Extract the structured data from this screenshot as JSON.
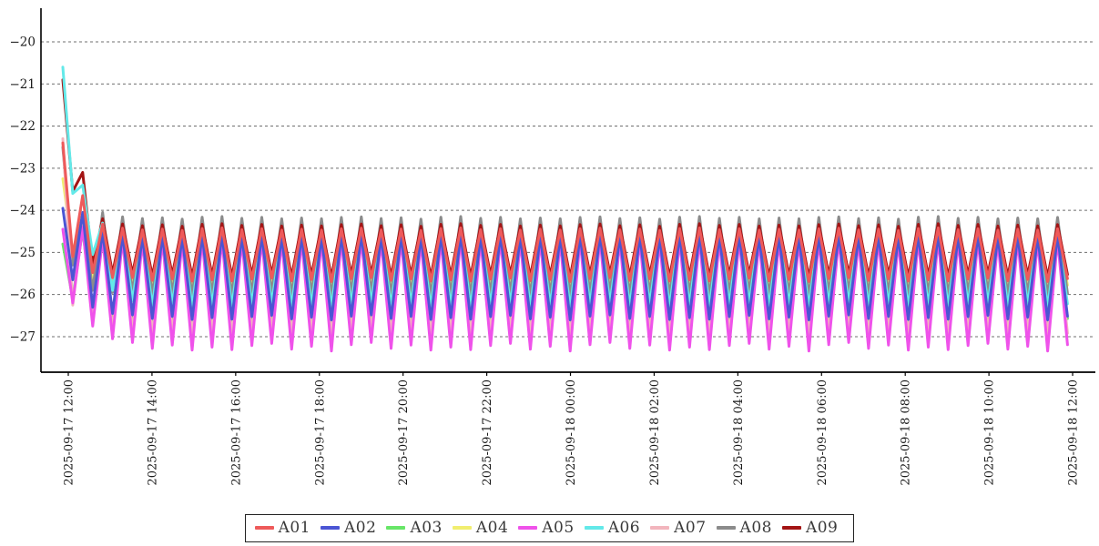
{
  "chart_data": {
    "type": "line",
    "title": "",
    "xlabel": "",
    "ylabel": "",
    "grid": "horizontal-dashed",
    "legend_position": "bottom-center",
    "x_axis": {
      "tick_labels": [
        "2025-09-17 12:00",
        "2025-09-17 14:00",
        "2025-09-17 16:00",
        "2025-09-17 18:00",
        "2025-09-17 20:00",
        "2025-09-17 22:00",
        "2025-09-18 00:00",
        "2025-09-18 02:00",
        "2025-09-18 04:00",
        "2025-09-18 06:00",
        "2025-09-18 08:00",
        "2025-09-18 10:00",
        "2025-09-18 12:00"
      ],
      "tick_interval_hours": 2
    },
    "y_axis": {
      "tick_values": [
        -20,
        -21,
        -22,
        -23,
        -24,
        -25,
        -26,
        -27
      ],
      "tick_labels": [
        "−20",
        "−21",
        "−22",
        "−23",
        "−24",
        "−25",
        "−26",
        "−27"
      ],
      "ylim": [
        -27.85,
        -19.2
      ]
    },
    "waveform": {
      "shape": "triangle",
      "period_minutes": 30,
      "cycles_shown": 50.5,
      "peak_jitter_scale": 0.3,
      "jitter_pattern": [
        0,
        -0.06,
        0.04,
        0.09,
        -0.05,
        0.02,
        -0.09,
        0.06,
        0.11,
        -0.03,
        0.05,
        -0.07
      ]
    },
    "series": [
      {
        "name": "A01",
        "color": "#ee5a5a",
        "draw_order": 8,
        "peaks_transient": [
          -22.4,
          -23.65,
          -24.33
        ],
        "troughs_transient": [
          -25.1,
          -25.48,
          -25.6
        ],
        "steady_peak": -24.45,
        "steady_trough": -25.65,
        "trough_jitter_scale": 0.45
      },
      {
        "name": "A02",
        "color": "#4b55d4",
        "draw_order": 7,
        "peaks_transient": [
          -23.95,
          -24.05,
          -24.5
        ],
        "troughs_transient": [
          -25.65,
          -26.3,
          -26.45
        ],
        "steady_peak": -24.6,
        "steady_trough": -26.55,
        "trough_jitter_scale": 0.6
      },
      {
        "name": "A03",
        "color": "#68e668",
        "draw_order": 4,
        "peaks_transient": [
          -24.8,
          -24.45,
          -24.5
        ],
        "troughs_transient": [
          -26.1,
          -26.5,
          -26.55
        ],
        "steady_peak": -24.5,
        "steady_trough": -26.6,
        "trough_jitter_scale": 0.5
      },
      {
        "name": "A04",
        "color": "#f1ee6f",
        "draw_order": 0,
        "peaks_transient": [
          -23.25,
          -24.1,
          -24.45
        ],
        "troughs_transient": [
          -25.0,
          -25.6,
          -25.75
        ],
        "steady_peak": -24.5,
        "steady_trough": -25.8,
        "trough_jitter_scale": 0.4
      },
      {
        "name": "A05",
        "color": "#ef52ea",
        "draw_order": 6,
        "peaks_transient": [
          -24.45,
          -24.4,
          -24.65
        ],
        "troughs_transient": [
          -26.2,
          -26.75,
          -27.05
        ],
        "steady_peak": -24.7,
        "steady_trough": -27.25,
        "trough_jitter_scale": 1.0
      },
      {
        "name": "A06",
        "color": "#63e9e9",
        "draw_order": 3,
        "peaks_transient": [
          -20.6,
          -23.4,
          -24.3,
          -24.5
        ],
        "troughs_transient": [
          -23.6,
          -25.05,
          -25.9,
          -26.15
        ],
        "steady_peak": -24.55,
        "steady_trough": -26.25,
        "trough_jitter_scale": 0.5
      },
      {
        "name": "A07",
        "color": "#f2b5bd",
        "draw_order": 5,
        "peaks_transient": [
          -22.3,
          -24.3,
          -24.6
        ],
        "troughs_transient": [
          -26.25,
          -26.6,
          -26.85
        ],
        "steady_peak": -24.65,
        "steady_trough": -26.95,
        "trough_jitter_scale": 0.55
      },
      {
        "name": "A08",
        "color": "#8b8b8b",
        "draw_order": 1,
        "peaks_transient": [
          -22.5,
          -24.1,
          -24.05
        ],
        "troughs_transient": [
          -25.3,
          -25.9,
          -25.95
        ],
        "steady_peak": -24.18,
        "steady_trough": -26.0,
        "trough_jitter_scale": 0.4
      },
      {
        "name": "A09",
        "color": "#a31414",
        "draw_order": 2,
        "peaks_transient": [
          -20.9,
          -23.1,
          -24.2
        ],
        "troughs_transient": [
          -23.55,
          -25.3,
          -25.5
        ],
        "steady_peak": -24.35,
        "steady_trough": -25.55,
        "trough_jitter_scale": 0.4
      }
    ]
  },
  "axis_style": {
    "spine_color": "#000000",
    "grid_color": "#6f6f6f",
    "legend_border_color": "#222222"
  }
}
